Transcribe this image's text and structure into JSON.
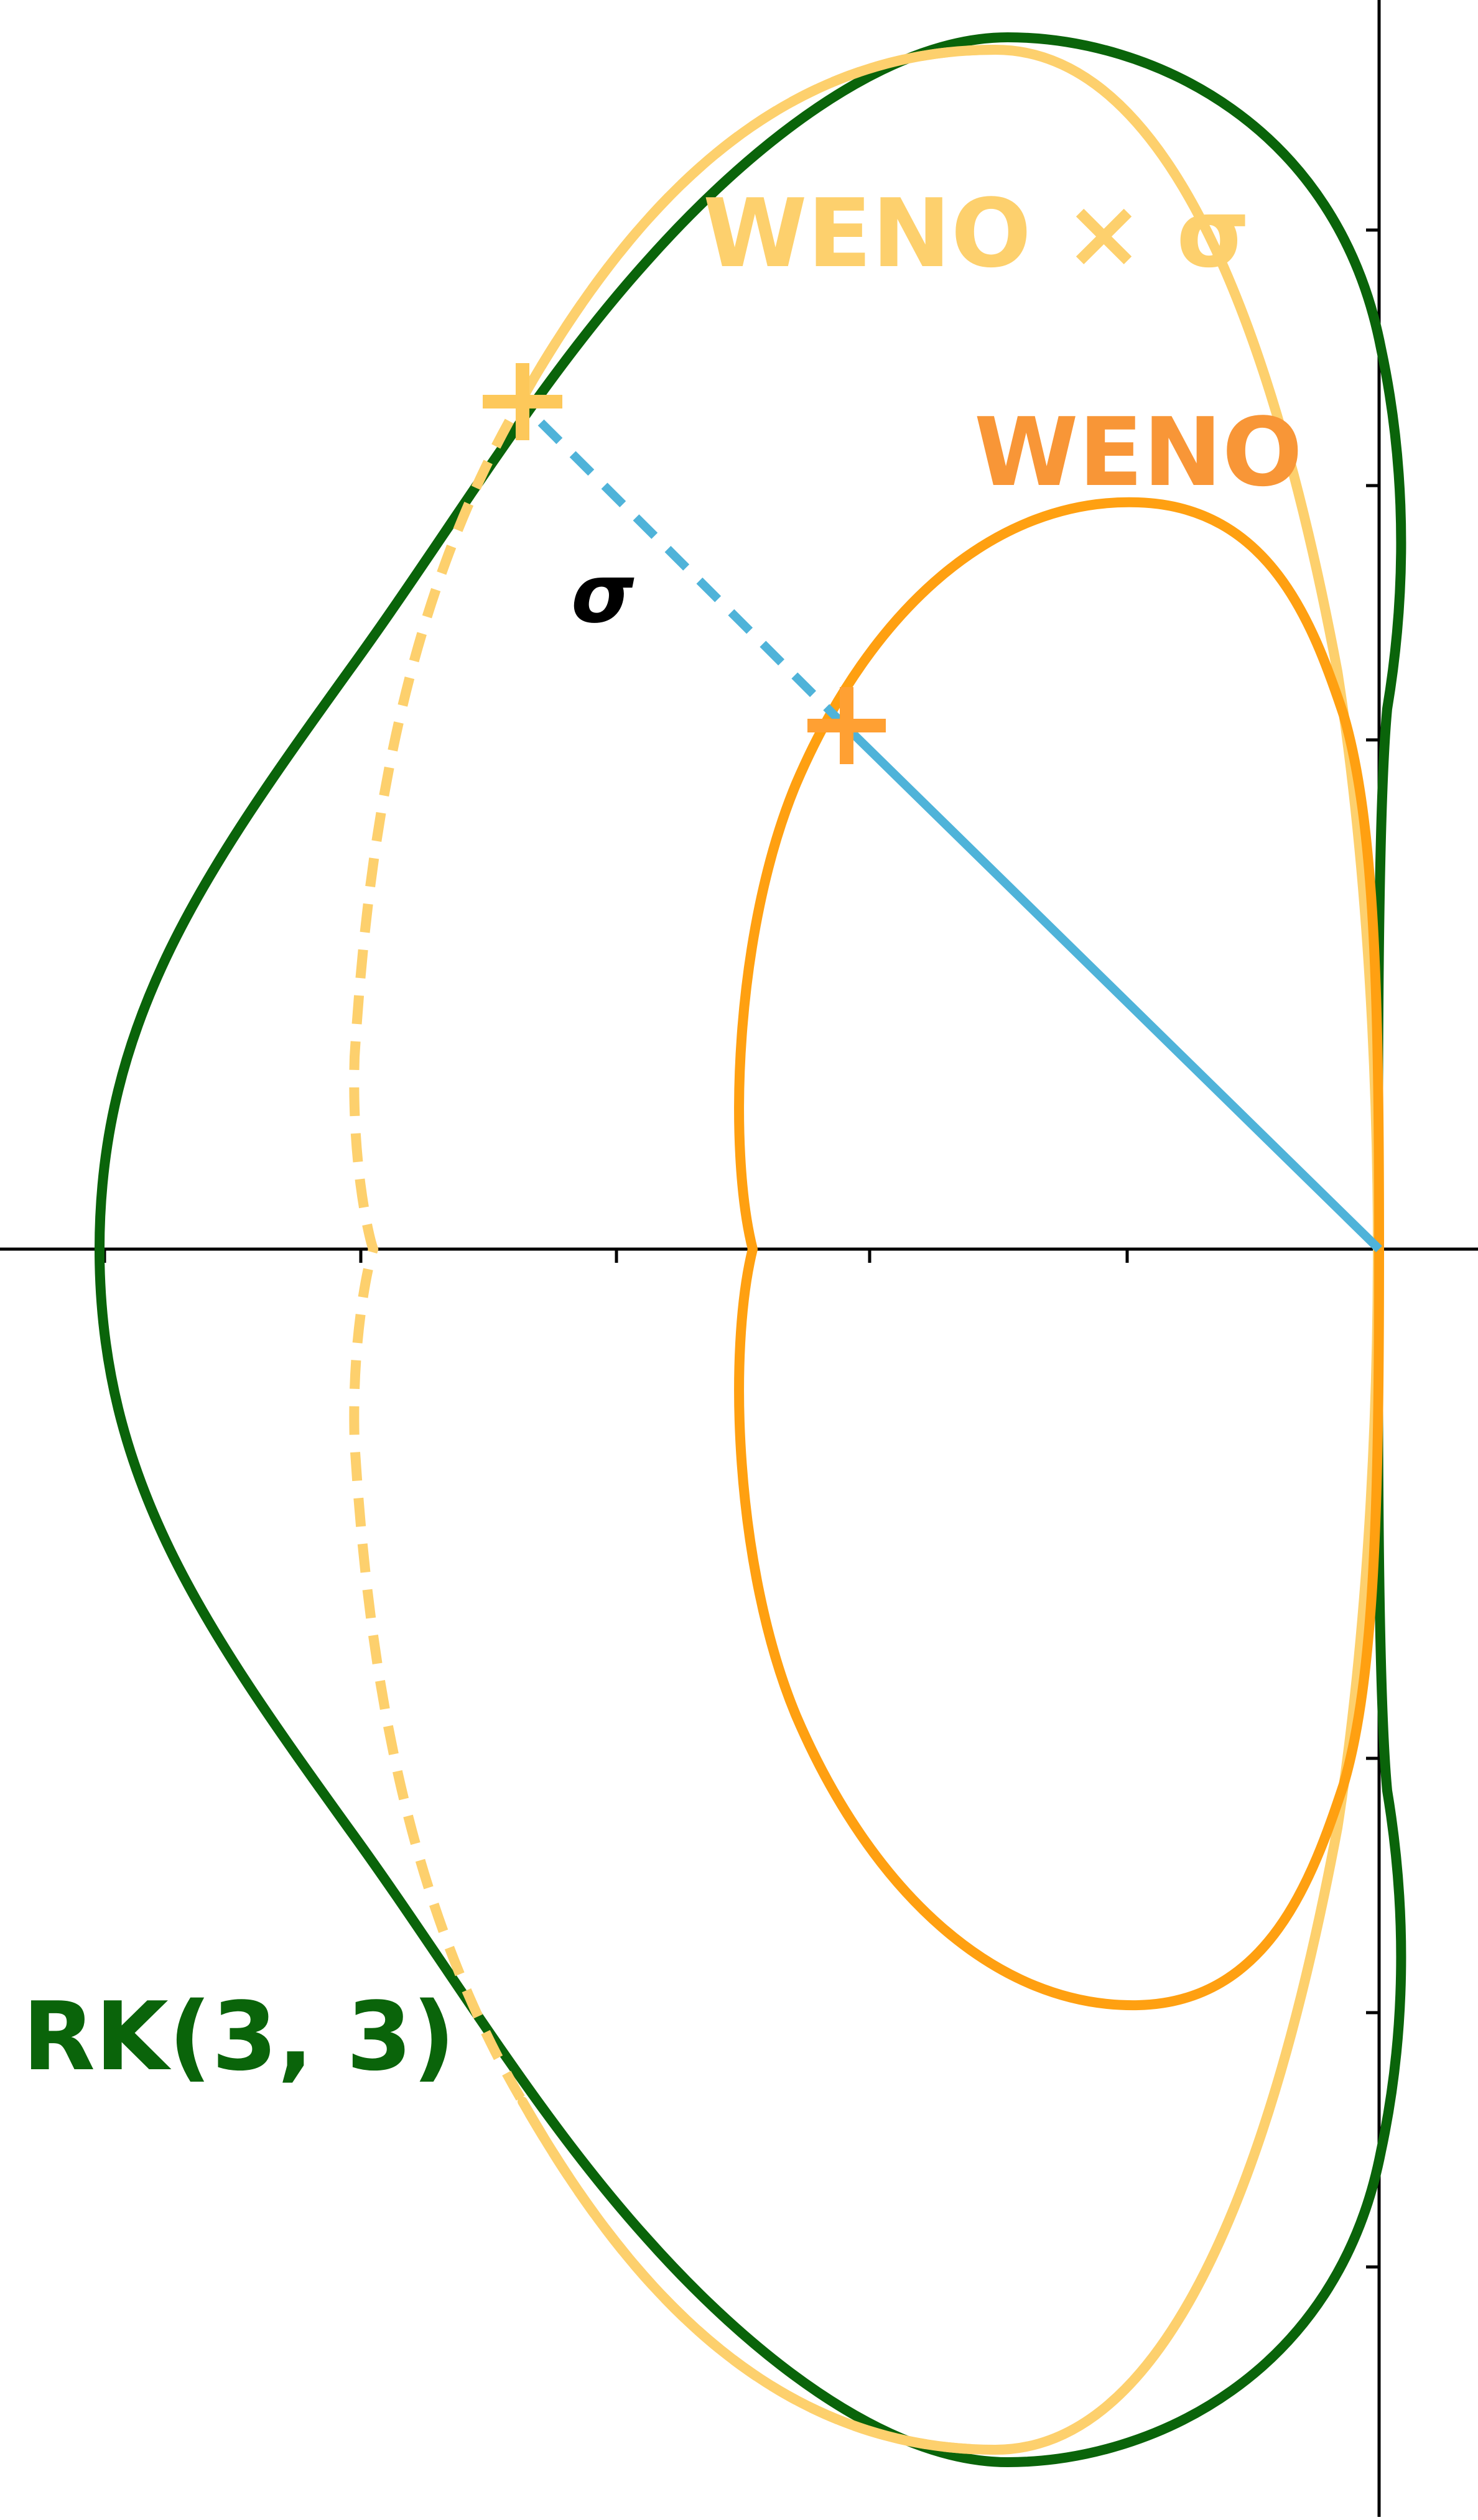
{
  "labels": {
    "rk": "RK(3, 3)",
    "weno": "WENO",
    "weno_sigma": "WENO × σ",
    "sigma": "σ"
  },
  "colors": {
    "rk": "#0a640a",
    "weno": "#ffa011",
    "weno_sigma": "#fdd06d",
    "weno_label": "#f89637",
    "sigma_line": "#4fb3d9",
    "axes": "#000000"
  }
}
